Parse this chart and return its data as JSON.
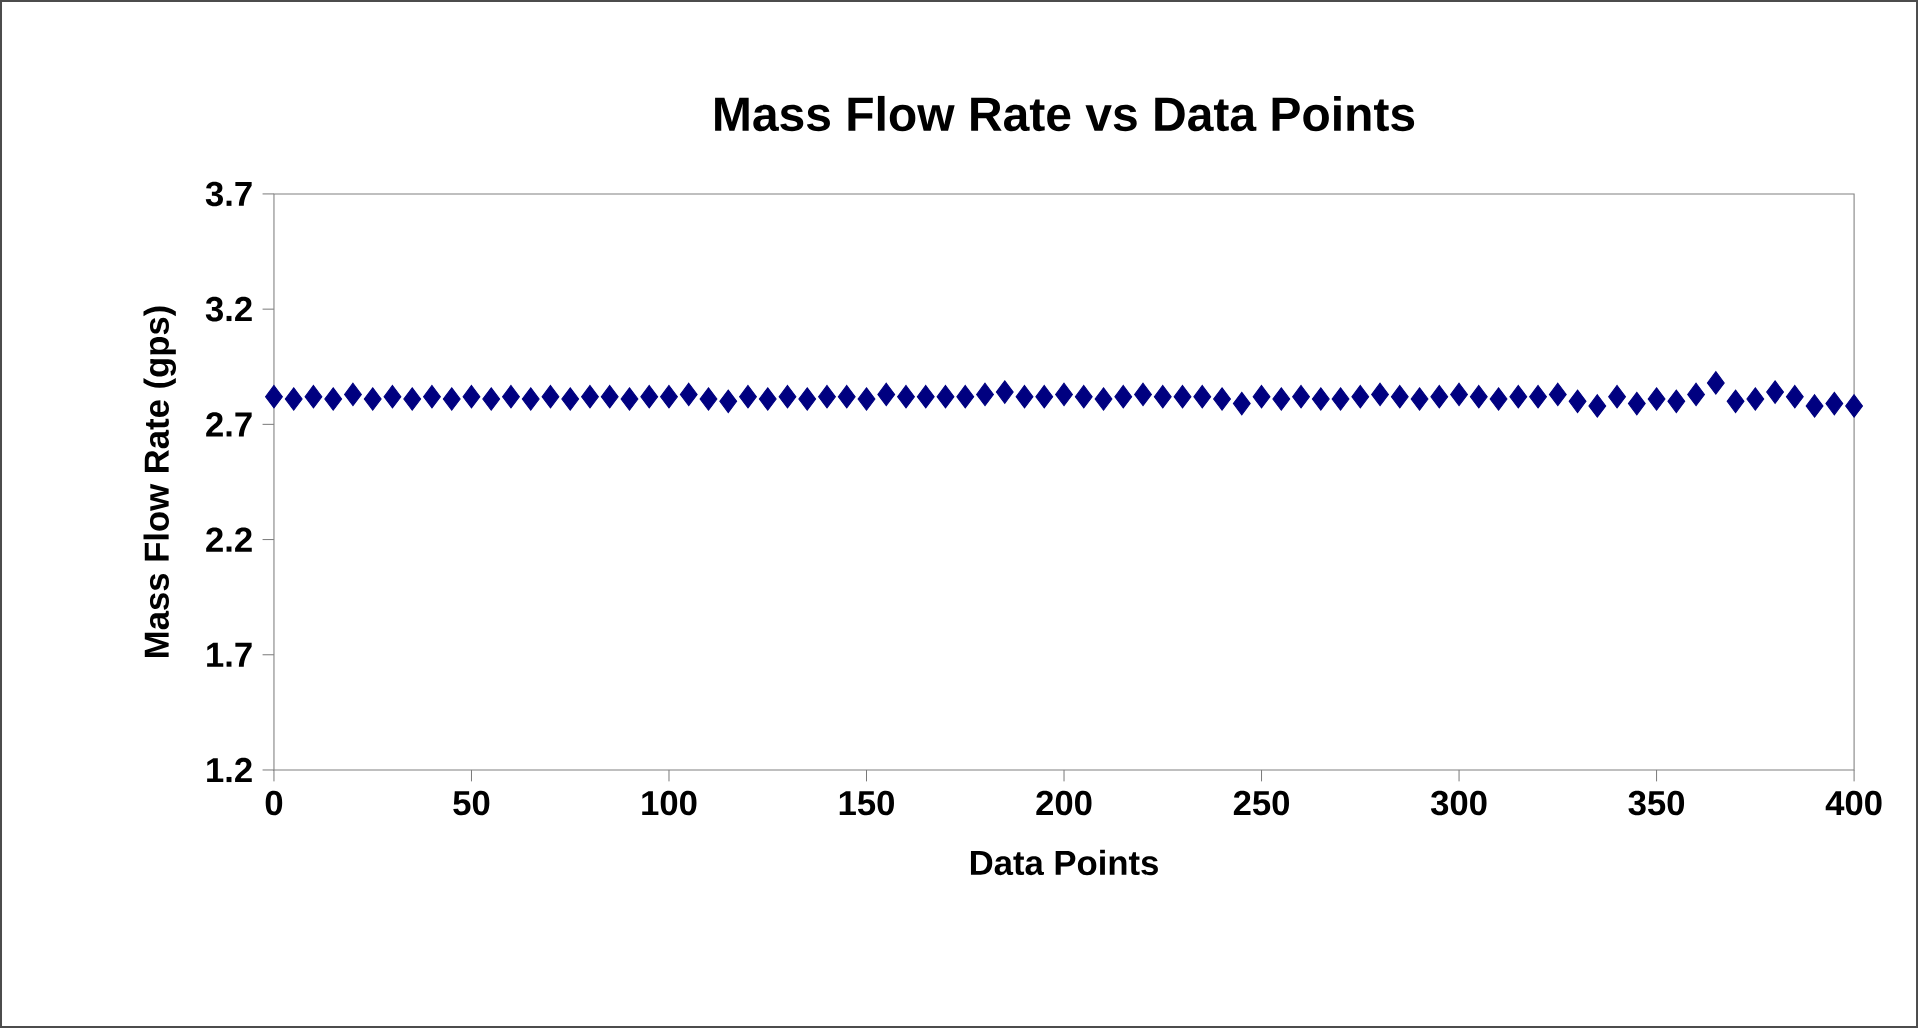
{
  "chart_data": {
    "type": "scatter",
    "title": "Mass Flow Rate vs Data Points",
    "xlabel": "Data Points",
    "ylabel": "Mass Flow Rate (gps)",
    "xlim": [
      0,
      400
    ],
    "xticks": [
      0,
      50,
      100,
      150,
      200,
      250,
      300,
      350,
      400
    ],
    "ylim": [
      1.2,
      3.7
    ],
    "yticks": [
      1.2,
      1.7,
      2.2,
      2.7,
      3.2,
      3.7
    ],
    "marker": "diamond",
    "series": [
      {
        "color": "#000080",
        "x": [
          0,
          5,
          10,
          15,
          20,
          25,
          30,
          35,
          40,
          45,
          50,
          55,
          60,
          65,
          70,
          75,
          80,
          85,
          90,
          95,
          100,
          105,
          110,
          115,
          120,
          125,
          130,
          135,
          140,
          145,
          150,
          155,
          160,
          165,
          170,
          175,
          180,
          185,
          190,
          195,
          200,
          205,
          210,
          215,
          220,
          225,
          230,
          235,
          240,
          245,
          250,
          255,
          260,
          265,
          270,
          275,
          280,
          285,
          290,
          295,
          300,
          305,
          310,
          315,
          320,
          325,
          330,
          335,
          340,
          345,
          350,
          355,
          360,
          365,
          370,
          375,
          380,
          385,
          390,
          395,
          400
        ],
        "values": [
          2.82,
          2.81,
          2.82,
          2.81,
          2.83,
          2.81,
          2.82,
          2.81,
          2.82,
          2.81,
          2.82,
          2.81,
          2.82,
          2.81,
          2.82,
          2.81,
          2.82,
          2.82,
          2.81,
          2.82,
          2.82,
          2.83,
          2.81,
          2.8,
          2.82,
          2.81,
          2.82,
          2.81,
          2.82,
          2.82,
          2.81,
          2.83,
          2.82,
          2.82,
          2.82,
          2.82,
          2.83,
          2.84,
          2.82,
          2.82,
          2.83,
          2.82,
          2.81,
          2.82,
          2.83,
          2.82,
          2.82,
          2.82,
          2.81,
          2.79,
          2.82,
          2.81,
          2.82,
          2.81,
          2.81,
          2.82,
          2.83,
          2.82,
          2.81,
          2.82,
          2.83,
          2.82,
          2.81,
          2.82,
          2.82,
          2.83,
          2.8,
          2.78,
          2.82,
          2.79,
          2.81,
          2.8,
          2.83,
          2.88,
          2.8,
          2.81,
          2.84,
          2.82,
          2.78,
          2.79,
          2.78
        ]
      }
    ]
  }
}
